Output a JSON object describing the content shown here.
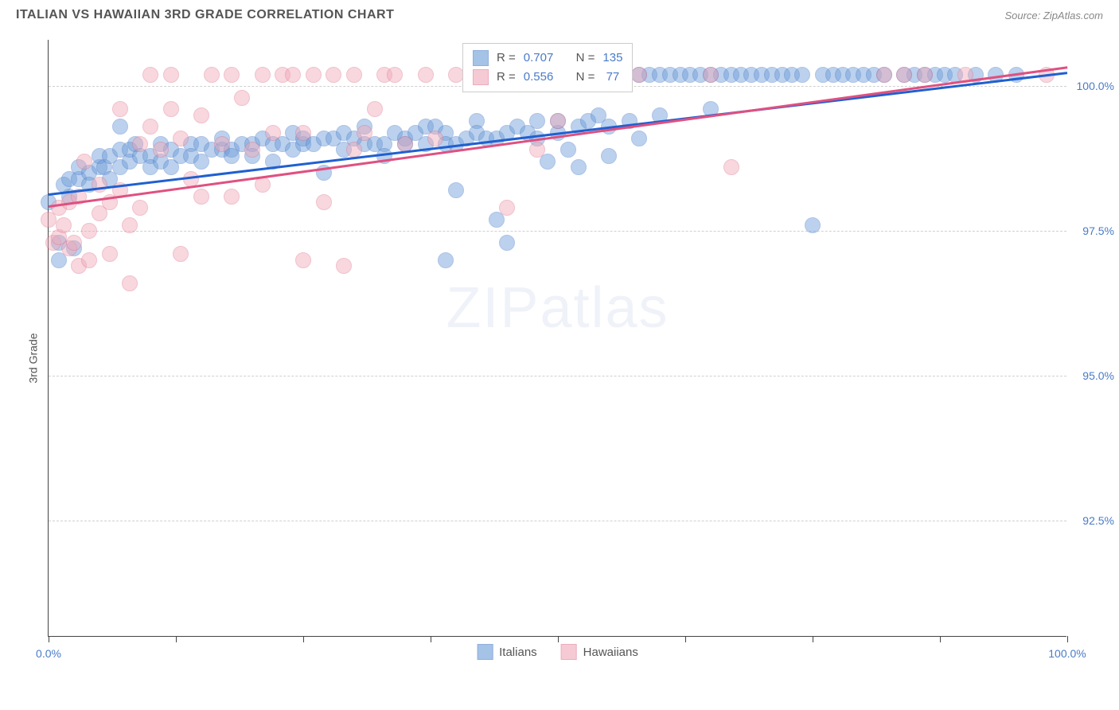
{
  "header": {
    "title": "ITALIAN VS HAWAIIAN 3RD GRADE CORRELATION CHART",
    "source": "Source: ZipAtlas.com"
  },
  "chart": {
    "type": "scatter",
    "ylabel": "3rd Grade",
    "watermark_bold": "ZIP",
    "watermark_light": "atlas",
    "background_color": "#ffffff",
    "grid_color": "#d0d0d0",
    "axis_color": "#444444",
    "xlim": [
      0,
      100
    ],
    "ylim": [
      90.5,
      100.8
    ],
    "x_ticks": [
      0,
      12.5,
      25,
      37.5,
      50,
      62.5,
      75,
      87.5,
      100
    ],
    "x_tick_labels": {
      "0": "0.0%",
      "100": "100.0%"
    },
    "y_gridlines": [
      92.5,
      95.0,
      97.5,
      100.0
    ],
    "y_tick_labels": [
      "92.5%",
      "95.0%",
      "97.5%",
      "100.0%"
    ],
    "marker_radius": 10,
    "marker_opacity": 0.45,
    "series": [
      {
        "name": "Italians",
        "color": "#6b9bd8",
        "border": "#4a7bc8",
        "r": "0.707",
        "n": "135",
        "trend": {
          "x1": 0,
          "y1": 98.15,
          "x2": 100,
          "y2": 100.25,
          "color": "#2060d0"
        },
        "points": [
          [
            0,
            98.0
          ],
          [
            1,
            97.0
          ],
          [
            1,
            97.3
          ],
          [
            2,
            98.1
          ],
          [
            1.5,
            98.3
          ],
          [
            2,
            98.4
          ],
          [
            2.5,
            97.2
          ],
          [
            3,
            98.4
          ],
          [
            3,
            98.6
          ],
          [
            4,
            98.5
          ],
          [
            4,
            98.3
          ],
          [
            5,
            98.6
          ],
          [
            5,
            98.8
          ],
          [
            5.5,
            98.6
          ],
          [
            6,
            98.8
          ],
          [
            6,
            98.4
          ],
          [
            7,
            98.9
          ],
          [
            7,
            98.6
          ],
          [
            8,
            98.7
          ],
          [
            8,
            98.9
          ],
          [
            8.5,
            99.0
          ],
          [
            9,
            98.8
          ],
          [
            10,
            98.8
          ],
          [
            10,
            98.6
          ],
          [
            11,
            98.7
          ],
          [
            11,
            99.0
          ],
          [
            12,
            98.9
          ],
          [
            12,
            98.6
          ],
          [
            13,
            98.8
          ],
          [
            14,
            99.0
          ],
          [
            14,
            98.8
          ],
          [
            15,
            99.0
          ],
          [
            15,
            98.7
          ],
          [
            16,
            98.9
          ],
          [
            17,
            98.9
          ],
          [
            17,
            99.1
          ],
          [
            18,
            98.9
          ],
          [
            18,
            98.8
          ],
          [
            19,
            99.0
          ],
          [
            20,
            99.0
          ],
          [
            20,
            98.8
          ],
          [
            21,
            99.1
          ],
          [
            22,
            99.0
          ],
          [
            22,
            98.7
          ],
          [
            23,
            99.0
          ],
          [
            24,
            99.2
          ],
          [
            24,
            98.9
          ],
          [
            25,
            99.0
          ],
          [
            25,
            99.1
          ],
          [
            26,
            99.0
          ],
          [
            27,
            99.1
          ],
          [
            27,
            98.5
          ],
          [
            28,
            99.1
          ],
          [
            29,
            98.9
          ],
          [
            29,
            99.2
          ],
          [
            30,
            99.1
          ],
          [
            31,
            99.0
          ],
          [
            31,
            99.3
          ],
          [
            32,
            99.0
          ],
          [
            33,
            99.0
          ],
          [
            33,
            98.8
          ],
          [
            34,
            99.2
          ],
          [
            35,
            99.0
          ],
          [
            35,
            99.1
          ],
          [
            36,
            99.2
          ],
          [
            37,
            99.3
          ],
          [
            37,
            99.0
          ],
          [
            38,
            99.3
          ],
          [
            39,
            99.2
          ],
          [
            39,
            99.0
          ],
          [
            40,
            99.0
          ],
          [
            40,
            98.2
          ],
          [
            41,
            99.1
          ],
          [
            42,
            99.4
          ],
          [
            42,
            99.2
          ],
          [
            43,
            99.1
          ],
          [
            44,
            97.7
          ],
          [
            44,
            99.1
          ],
          [
            45,
            97.3
          ],
          [
            45,
            99.2
          ],
          [
            46,
            99.3
          ],
          [
            47,
            99.2
          ],
          [
            48,
            99.4
          ],
          [
            48,
            99.1
          ],
          [
            49,
            98.7
          ],
          [
            50,
            99.2
          ],
          [
            50,
            99.4
          ],
          [
            51,
            98.9
          ],
          [
            52,
            99.3
          ],
          [
            52,
            98.6
          ],
          [
            53,
            99.4
          ],
          [
            54,
            99.5
          ],
          [
            55,
            99.3
          ],
          [
            55,
            98.8
          ],
          [
            56,
            100.2
          ],
          [
            57,
            99.4
          ],
          [
            58,
            100.2
          ],
          [
            58,
            99.1
          ],
          [
            59,
            100.2
          ],
          [
            60,
            100.2
          ],
          [
            60,
            99.5
          ],
          [
            61,
            100.2
          ],
          [
            62,
            100.2
          ],
          [
            63,
            100.2
          ],
          [
            64,
            100.2
          ],
          [
            65,
            100.2
          ],
          [
            65,
            99.6
          ],
          [
            66,
            100.2
          ],
          [
            67,
            100.2
          ],
          [
            68,
            100.2
          ],
          [
            69,
            100.2
          ],
          [
            70,
            100.2
          ],
          [
            71,
            100.2
          ],
          [
            72,
            100.2
          ],
          [
            73,
            100.2
          ],
          [
            74,
            100.2
          ],
          [
            75,
            97.6
          ],
          [
            76,
            100.2
          ],
          [
            77,
            100.2
          ],
          [
            78,
            100.2
          ],
          [
            79,
            100.2
          ],
          [
            80,
            100.2
          ],
          [
            81,
            100.2
          ],
          [
            82,
            100.2
          ],
          [
            84,
            100.2
          ],
          [
            85,
            100.2
          ],
          [
            86,
            100.2
          ],
          [
            87,
            100.2
          ],
          [
            88,
            100.2
          ],
          [
            89,
            100.2
          ],
          [
            91,
            100.2
          ],
          [
            93,
            100.2
          ],
          [
            95,
            100.2
          ],
          [
            7,
            99.3
          ],
          [
            39,
            97.0
          ]
        ]
      },
      {
        "name": "Hawaiians",
        "color": "#f0a8b8",
        "border": "#e07890",
        "r": "0.556",
        "n": "77",
        "trend": {
          "x1": 0,
          "y1": 97.95,
          "x2": 100,
          "y2": 100.35,
          "color": "#e05080"
        },
        "points": [
          [
            0,
            97.7
          ],
          [
            0.5,
            97.3
          ],
          [
            1,
            97.9
          ],
          [
            1,
            97.4
          ],
          [
            1.5,
            97.6
          ],
          [
            2,
            98.0
          ],
          [
            2,
            97.2
          ],
          [
            2.5,
            97.3
          ],
          [
            3,
            98.1
          ],
          [
            3,
            96.9
          ],
          [
            3.5,
            98.7
          ],
          [
            4,
            97.5
          ],
          [
            4,
            97.0
          ],
          [
            5,
            98.3
          ],
          [
            5,
            97.8
          ],
          [
            6,
            97.1
          ],
          [
            6,
            98.0
          ],
          [
            7,
            98.2
          ],
          [
            7,
            99.6
          ],
          [
            8,
            97.6
          ],
          [
            8,
            96.6
          ],
          [
            9,
            99.0
          ],
          [
            9,
            97.9
          ],
          [
            10,
            99.3
          ],
          [
            10,
            100.2
          ],
          [
            11,
            98.9
          ],
          [
            12,
            99.6
          ],
          [
            12,
            100.2
          ],
          [
            13,
            97.1
          ],
          [
            13,
            99.1
          ],
          [
            14,
            98.4
          ],
          [
            15,
            99.5
          ],
          [
            15,
            98.1
          ],
          [
            16,
            100.2
          ],
          [
            17,
            99.0
          ],
          [
            18,
            98.1
          ],
          [
            18,
            100.2
          ],
          [
            19,
            99.8
          ],
          [
            20,
            98.9
          ],
          [
            21,
            98.3
          ],
          [
            21,
            100.2
          ],
          [
            22,
            99.2
          ],
          [
            23,
            100.2
          ],
          [
            24,
            100.2
          ],
          [
            25,
            99.2
          ],
          [
            25,
            97.0
          ],
          [
            26,
            100.2
          ],
          [
            27,
            98.0
          ],
          [
            28,
            100.2
          ],
          [
            29,
            96.9
          ],
          [
            30,
            98.9
          ],
          [
            30,
            100.2
          ],
          [
            31,
            99.2
          ],
          [
            32,
            99.6
          ],
          [
            33,
            100.2
          ],
          [
            34,
            100.2
          ],
          [
            35,
            99.0
          ],
          [
            37,
            100.2
          ],
          [
            38,
            99.1
          ],
          [
            40,
            100.2
          ],
          [
            42,
            100.2
          ],
          [
            44,
            100.2
          ],
          [
            45,
            97.9
          ],
          [
            47,
            100.2
          ],
          [
            48,
            98.9
          ],
          [
            49,
            100.2
          ],
          [
            50,
            99.4
          ],
          [
            53,
            100.2
          ],
          [
            55,
            100.2
          ],
          [
            58,
            100.2
          ],
          [
            65,
            100.2
          ],
          [
            67,
            98.6
          ],
          [
            82,
            100.2
          ],
          [
            84,
            100.2
          ],
          [
            86,
            100.2
          ],
          [
            90,
            100.2
          ],
          [
            98,
            100.2
          ]
        ]
      }
    ],
    "legend_bottom": [
      "Italians",
      "Hawaiians"
    ]
  }
}
